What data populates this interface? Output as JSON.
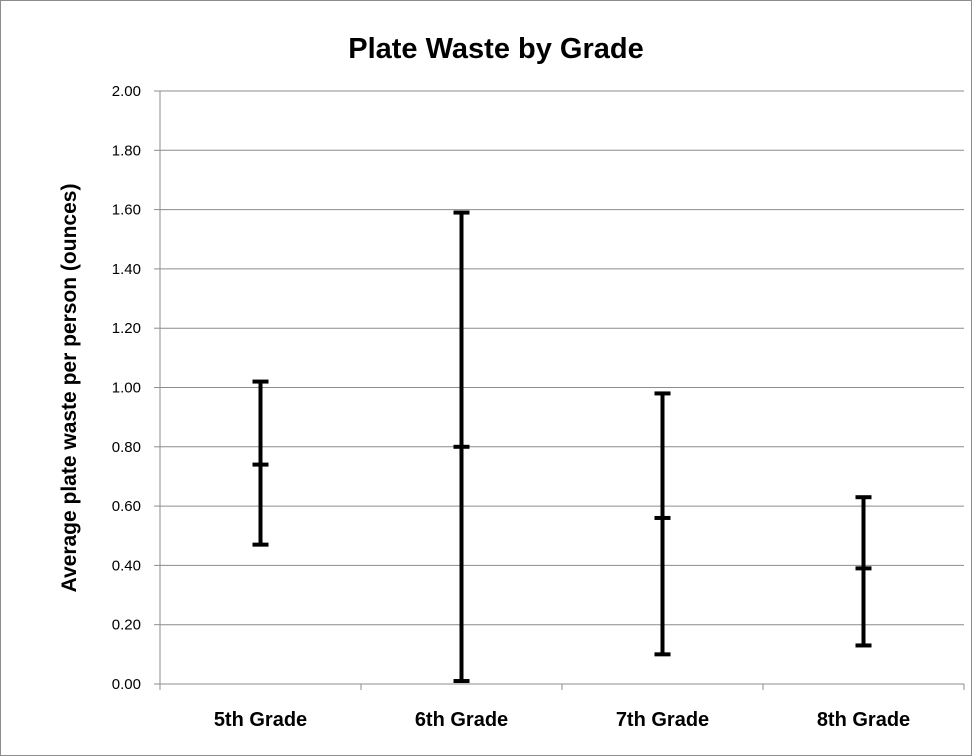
{
  "chart_data": {
    "type": "error-bar",
    "title": "Plate Waste by Grade",
    "xlabel": "",
    "ylabel": "Average plate waste per person (ounces)",
    "ylim": [
      0,
      2.0
    ],
    "yticks": [
      "0.00",
      "0.20",
      "0.40",
      "0.60",
      "0.80",
      "1.00",
      "1.20",
      "1.40",
      "1.60",
      "1.80",
      "2.00"
    ],
    "grid": true,
    "legend": "none",
    "categories": [
      "5th Grade",
      "6th Grade",
      "7th Grade",
      "8th Grade"
    ],
    "mean": [
      0.74,
      0.8,
      0.56,
      0.39
    ],
    "low": [
      0.47,
      0.01,
      0.1,
      0.13
    ],
    "high": [
      1.02,
      1.59,
      0.98,
      0.63
    ],
    "colors": {
      "marks": "#000000",
      "grid": "#8c8c8c",
      "axis": "#8c8c8c"
    }
  }
}
